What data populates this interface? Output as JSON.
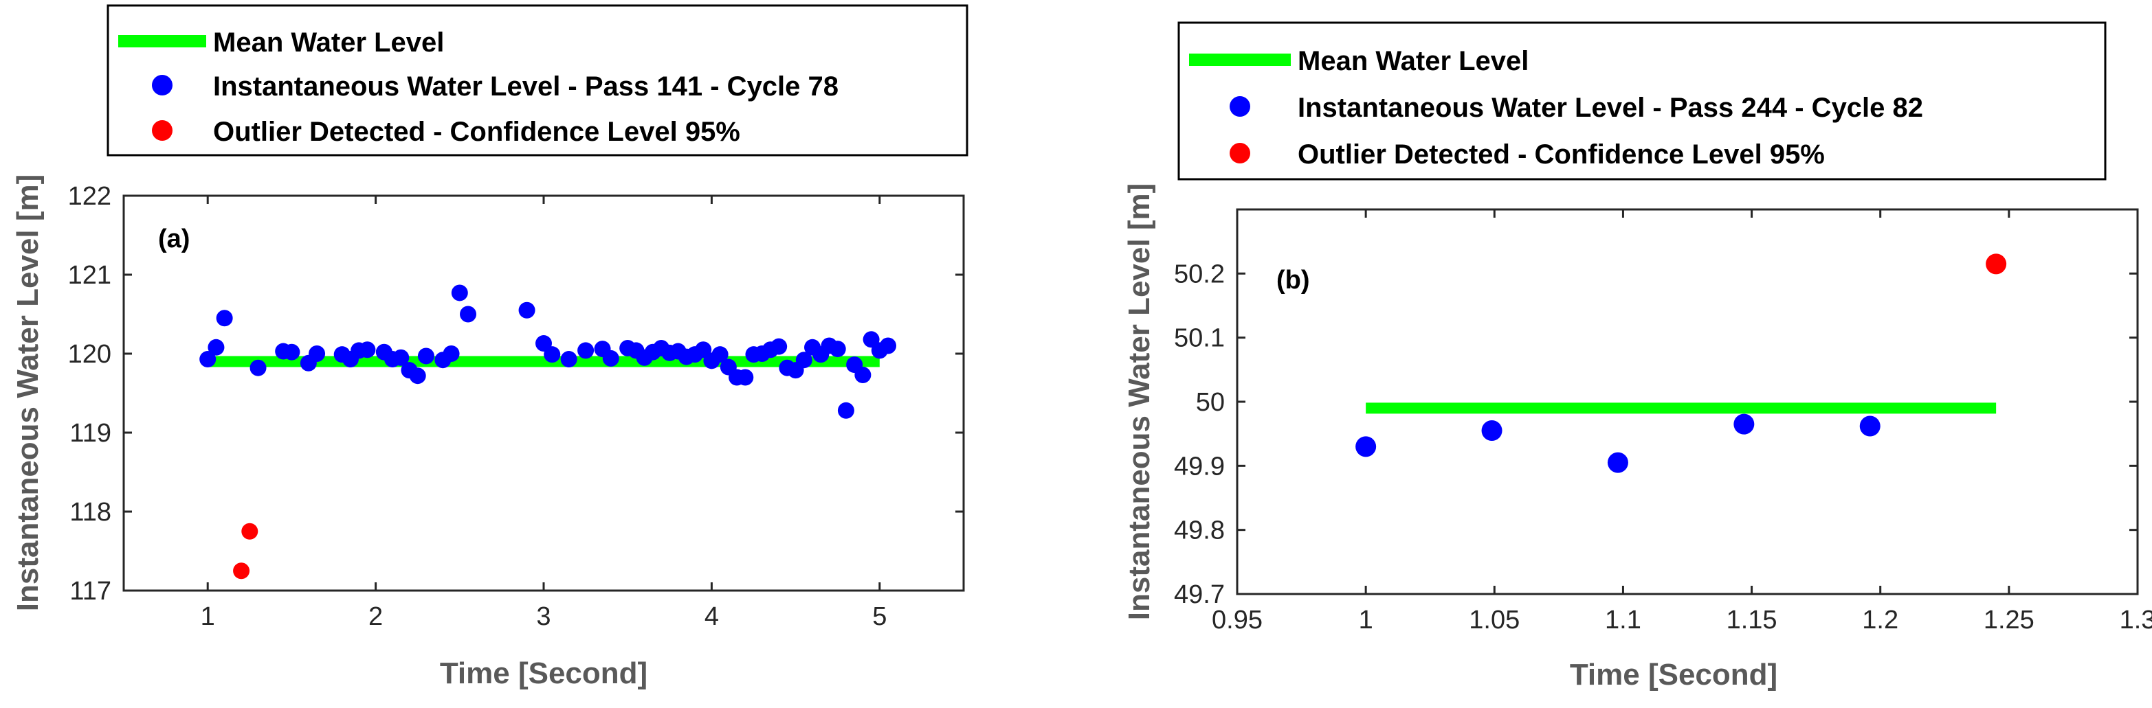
{
  "colors": {
    "mean": "#00ff00",
    "instant": "#0000ff",
    "outlier": "#ff0000"
  },
  "chart_data": [
    {
      "type": "scatter",
      "panel_label": "(a)",
      "xlabel": "Time [Second]",
      "ylabel": "Instantaneous Water Level [m]",
      "xlim": [
        0.5,
        5.5
      ],
      "ylim": [
        117,
        122
      ],
      "xticks": [
        1,
        2,
        3,
        4,
        5
      ],
      "yticks": [
        117,
        118,
        119,
        120,
        121,
        122
      ],
      "xtick_labels": [
        "1",
        "2",
        "3",
        "4",
        "5"
      ],
      "ytick_labels": [
        "117",
        "118",
        "119",
        "120",
        "121",
        "122"
      ],
      "legend": {
        "location": "above",
        "entries": [
          "Mean Water Level",
          "Instantaneous Water Level - Pass 141 - Cycle 78",
          "Outlier Detected - Confidence Level 95%"
        ]
      },
      "mean_line": {
        "x": [
          1.0,
          5.0
        ],
        "y": 119.9
      },
      "instantaneous": {
        "x": [
          1.0,
          1.05,
          1.1,
          1.3,
          1.45,
          1.5,
          1.6,
          1.65,
          1.8,
          1.85,
          1.9,
          1.95,
          2.05,
          2.1,
          2.15,
          2.2,
          2.25,
          2.3,
          2.4,
          2.45,
          2.5,
          2.55,
          2.9,
          3.0,
          3.05,
          3.15,
          3.25,
          3.35,
          3.4,
          3.5,
          3.55,
          3.6,
          3.65,
          3.7,
          3.75,
          3.8,
          3.85,
          3.9,
          3.95,
          4.0,
          4.05,
          4.1,
          4.15,
          4.2,
          4.25,
          4.3,
          4.35,
          4.4,
          4.45,
          4.5,
          4.55,
          4.6,
          4.65,
          4.7,
          4.75,
          4.8,
          4.85,
          4.9,
          4.95,
          5.0,
          5.05
        ],
        "y": [
          119.93,
          120.08,
          120.45,
          119.82,
          120.03,
          120.02,
          119.88,
          120.0,
          119.99,
          119.93,
          120.04,
          120.05,
          120.02,
          119.93,
          119.95,
          119.79,
          119.72,
          119.97,
          119.92,
          120.0,
          120.77,
          120.5,
          120.55,
          120.13,
          119.99,
          119.93,
          120.04,
          120.06,
          119.94,
          120.07,
          120.04,
          119.95,
          120.02,
          120.07,
          120.01,
          120.03,
          119.96,
          119.99,
          120.05,
          119.91,
          119.99,
          119.83,
          119.7,
          119.7,
          119.99,
          120.0,
          120.05,
          120.09,
          119.82,
          119.79,
          119.92,
          120.08,
          119.99,
          120.1,
          120.06,
          119.28,
          119.86,
          119.73,
          120.18,
          120.04,
          120.1
        ]
      },
      "outliers": {
        "x": [
          1.2,
          1.25
        ],
        "y": [
          117.25,
          117.75
        ]
      }
    },
    {
      "type": "scatter",
      "panel_label": "(b)",
      "xlabel": "Time [Second]",
      "ylabel": "Instantaneous Water Level [m]",
      "xlim": [
        0.95,
        1.3
      ],
      "ylim": [
        49.7,
        50.3
      ],
      "xticks": [
        0.95,
        1.0,
        1.05,
        1.1,
        1.15,
        1.2,
        1.25,
        1.3
      ],
      "yticks": [
        49.7,
        49.8,
        49.9,
        50.0,
        50.1,
        50.2
      ],
      "xtick_labels": [
        "0.95",
        "1",
        "1.05",
        "1.1",
        "1.15",
        "1.2",
        "1.25",
        "1.3"
      ],
      "ytick_labels": [
        "49.7",
        "49.8",
        "49.9",
        "50",
        "50.1",
        "50.2"
      ],
      "legend": {
        "location": "above",
        "entries": [
          "Mean Water Level",
          "Instantaneous Water Level - Pass 244 - Cycle 82",
          "Outlier Detected - Confidence Level  95%"
        ]
      },
      "mean_line": {
        "x": [
          1.0,
          1.245
        ],
        "y": 49.99
      },
      "instantaneous": {
        "x": [
          1.0,
          1.049,
          1.098,
          1.147,
          1.196
        ],
        "y": [
          49.93,
          49.955,
          49.905,
          49.965,
          49.962
        ]
      },
      "outliers": {
        "x": [
          1.245
        ],
        "y": [
          50.215
        ]
      }
    }
  ]
}
